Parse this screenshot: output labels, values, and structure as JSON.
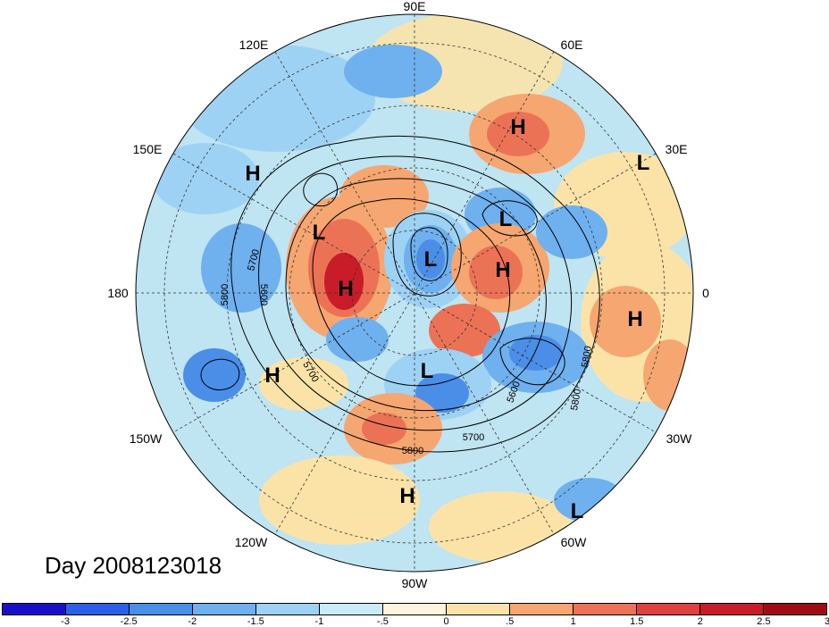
{
  "title": "Day 2008123018",
  "longitude_labels": {
    "e90": "90E",
    "e120": "120E",
    "e60": "60E",
    "e150": "150E",
    "e30": "30E",
    "l180": "180",
    "l0": "0",
    "w150": "150W",
    "w30": "30W",
    "w120": "120W",
    "w60": "60W",
    "w90": "90W"
  },
  "pressure_centers": [
    {
      "id": "h-ural",
      "label": "H"
    },
    {
      "id": "h-east-siberia",
      "label": "H"
    },
    {
      "id": "l-europe-east",
      "label": "L"
    },
    {
      "id": "l-japan",
      "label": "L"
    },
    {
      "id": "l-barents",
      "label": "L"
    },
    {
      "id": "l-pole",
      "label": "L"
    },
    {
      "id": "h-alaska",
      "label": "H"
    },
    {
      "id": "h-scandinavia",
      "label": "H"
    },
    {
      "id": "h-west-africa",
      "label": "H"
    },
    {
      "id": "h-north-pacific",
      "label": "H"
    },
    {
      "id": "l-hudson",
      "label": "L"
    },
    {
      "id": "h-central-america",
      "label": "H"
    },
    {
      "id": "l-south-atlantic",
      "label": "L"
    }
  ],
  "contour_labels": [
    "5700",
    "5800",
    "5600",
    "5800",
    "5700",
    "5600",
    "5800",
    "5700",
    "5800"
  ],
  "colorbar": {
    "colors": [
      "#1a0fc9",
      "#2c5fe6",
      "#4a8ee8",
      "#6fb0ef",
      "#9ed2f4",
      "#c9ecf8",
      "#fdf6dc",
      "#fbe3a8",
      "#f6a670",
      "#ec7256",
      "#e04040",
      "#c81c28",
      "#a00c14"
    ],
    "tick_labels": [
      "-3",
      "-2.5",
      "-2",
      "-1.5",
      "-1",
      "-.5",
      "0",
      ".5",
      "1",
      "1.5",
      "2",
      "2.5",
      "3"
    ]
  }
}
